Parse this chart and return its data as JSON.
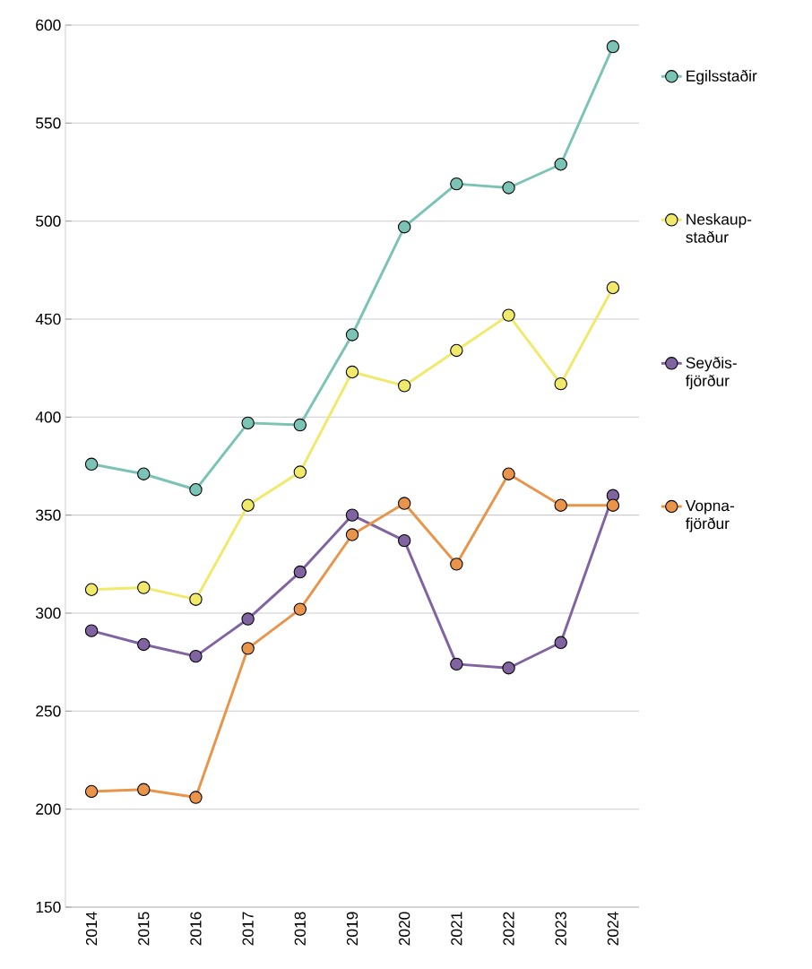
{
  "chart_data": {
    "type": "line",
    "categories": [
      "2014",
      "2015",
      "2016",
      "2017",
      "2018",
      "2019",
      "2020",
      "2021",
      "2022",
      "2023",
      "2024"
    ],
    "series": [
      {
        "name": "Egilsstaðir",
        "color": "#7ac3b5",
        "values": [
          376,
          371,
          363,
          397,
          396,
          442,
          497,
          519,
          517,
          529,
          589
        ]
      },
      {
        "name": "Neskaup-staður",
        "color": "#f0e96a",
        "values": [
          312,
          313,
          307,
          355,
          372,
          423,
          416,
          434,
          452,
          417,
          466
        ]
      },
      {
        "name": "Seyðis-fjörður",
        "color": "#8064a2",
        "values": [
          291,
          284,
          278,
          297,
          321,
          350,
          337,
          274,
          272,
          285,
          360
        ]
      },
      {
        "name": "Vopna-fjörður",
        "color": "#e8944a",
        "values": [
          209,
          210,
          206,
          282,
          302,
          340,
          356,
          325,
          371,
          355,
          355
        ]
      }
    ],
    "ylim": [
      150,
      600
    ],
    "yticks": [
      150,
      200,
      250,
      300,
      350,
      400,
      450,
      500,
      550,
      600
    ],
    "grid": "y",
    "legend": "right",
    "marker": "circle",
    "line_style": "solid"
  }
}
